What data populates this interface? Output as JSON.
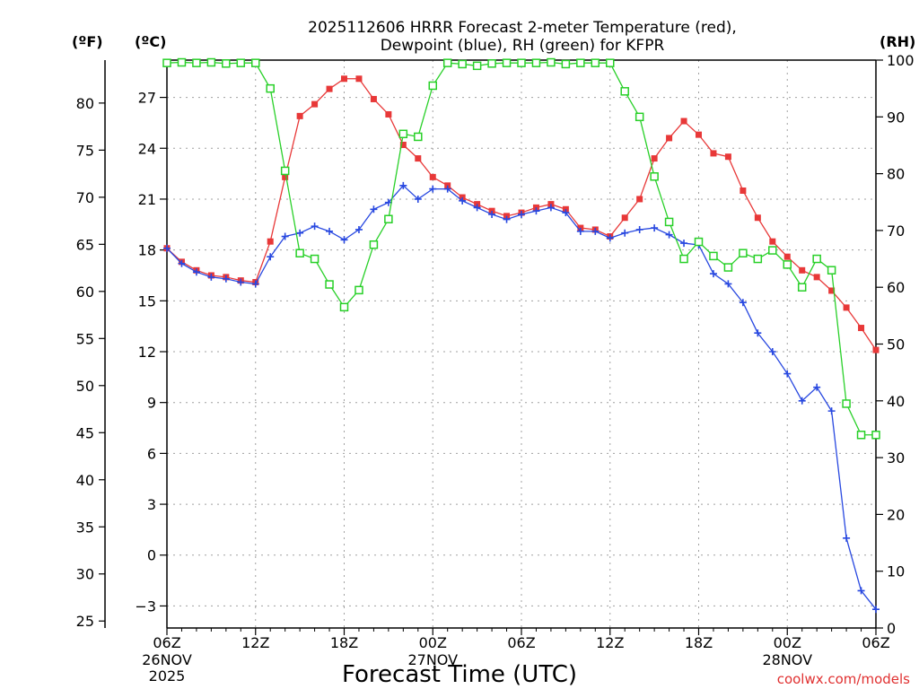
{
  "chart_data": {
    "type": "line",
    "title_line1": "2025112606 HRRR Forecast 2-meter Temperature (red),",
    "title_line2": "Dewpoint (blue), RH (green) for KFPR",
    "xlabel": "Forecast Time (UTC)",
    "credit": "coolwx.com/models",
    "unit_f": "(ºF)",
    "unit_c": "(ºC)",
    "unit_rh": "(RH)",
    "x_ticks": [
      {
        "hour": 0,
        "label": "06Z"
      },
      {
        "hour": 6,
        "label": "12Z"
      },
      {
        "hour": 12,
        "label": "18Z"
      },
      {
        "hour": 18,
        "label": "00Z"
      },
      {
        "hour": 24,
        "label": "06Z"
      },
      {
        "hour": 30,
        "label": "12Z"
      },
      {
        "hour": 36,
        "label": "18Z"
      },
      {
        "hour": 42,
        "label": "00Z"
      },
      {
        "hour": 48,
        "label": "06Z"
      }
    ],
    "date_labels": [
      {
        "hour": 0,
        "lines": [
          "26NOV",
          "2025"
        ]
      },
      {
        "hour": 18,
        "lines": [
          "27NOV"
        ]
      },
      {
        "hour": 42,
        "lines": [
          "28NOV"
        ]
      }
    ],
    "c_ticks": [
      -3,
      0,
      3,
      6,
      9,
      12,
      15,
      18,
      21,
      24,
      27
    ],
    "f_ticks": [
      25,
      30,
      35,
      40,
      45,
      50,
      55,
      60,
      65,
      70,
      75,
      80
    ],
    "rh_ticks": [
      0,
      10,
      20,
      30,
      40,
      50,
      60,
      70,
      80,
      90,
      100
    ],
    "c_range": [
      -4.3,
      29.2
    ],
    "rh_range": [
      0,
      100
    ],
    "x_range": [
      0,
      48
    ],
    "series": [
      {
        "name": "Temperature",
        "unit": "C",
        "color": "#e83838",
        "marker": "square",
        "values": [
          18.1,
          17.3,
          16.8,
          16.5,
          16.4,
          16.2,
          16.1,
          18.5,
          22.3,
          25.9,
          26.6,
          27.5,
          28.1,
          28.1,
          26.9,
          26.0,
          24.2,
          23.4,
          22.3,
          21.8,
          21.1,
          20.7,
          20.3,
          20.0,
          20.2,
          20.5,
          20.7,
          20.4,
          19.3,
          19.2,
          18.8,
          19.9,
          21.0,
          23.4,
          24.6,
          25.6,
          24.8,
          23.7,
          23.5,
          21.5,
          19.9,
          18.5,
          17.6,
          16.8,
          16.4,
          15.6,
          14.6,
          13.4,
          12.1
        ]
      },
      {
        "name": "Dewpoint",
        "unit": "C",
        "color": "#2848e0",
        "marker": "plus",
        "values": [
          18.1,
          17.2,
          16.7,
          16.4,
          16.3,
          16.1,
          16.0,
          17.6,
          18.8,
          19.0,
          19.4,
          19.1,
          18.6,
          19.2,
          20.4,
          20.8,
          21.8,
          21.0,
          21.6,
          21.6,
          20.9,
          20.5,
          20.1,
          19.8,
          20.1,
          20.3,
          20.5,
          20.2,
          19.1,
          19.1,
          18.7,
          19.0,
          19.2,
          19.3,
          18.9,
          18.4,
          18.3,
          16.6,
          16.0,
          14.9,
          13.1,
          12.0,
          10.7,
          9.1,
          9.9,
          8.5,
          1.0,
          -2.1,
          -3.2
        ]
      },
      {
        "name": "RH",
        "unit": "%",
        "color": "#28d028",
        "marker": "open-square",
        "values": [
          99.5,
          99.6,
          99.5,
          99.6,
          99.4,
          99.5,
          99.5,
          95.0,
          80.5,
          66.0,
          65.0,
          60.5,
          56.5,
          59.5,
          67.5,
          72.0,
          87.0,
          86.5,
          95.5,
          99.5,
          99.3,
          99.0,
          99.4,
          99.5,
          99.5,
          99.5,
          99.6,
          99.3,
          99.5,
          99.5,
          99.5,
          94.5,
          90.0,
          79.5,
          71.5,
          65.0,
          68.0,
          65.5,
          63.5,
          66.0,
          65.0,
          66.5,
          64.0,
          60.0,
          65.0,
          63.0,
          39.5,
          34.0,
          34.0
        ]
      }
    ]
  }
}
